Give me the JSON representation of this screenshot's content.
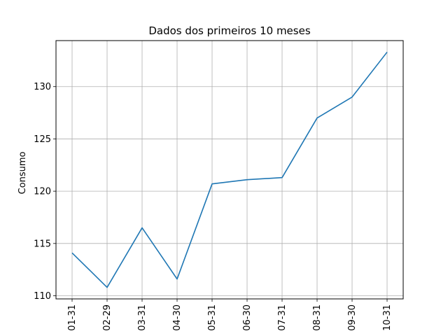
{
  "chart_data": {
    "type": "line",
    "title": "Dados dos primeiros 10 meses",
    "xlabel": "",
    "ylabel": "Consumo",
    "categories": [
      "01-31",
      "02-29",
      "03-31",
      "04-30",
      "05-31",
      "06-30",
      "07-31",
      "08-31",
      "09-30",
      "10-31"
    ],
    "series": [
      {
        "values": [
          114.1,
          110.8,
          116.5,
          111.6,
          120.7,
          121.1,
          121.3,
          127.0,
          129.0,
          133.3
        ]
      }
    ],
    "ylim": [
      109.7,
      134.4
    ],
    "yticks": [
      110,
      115,
      120,
      125,
      130
    ],
    "grid": true,
    "colors": {
      "line": "#1f77b4",
      "grid": "#b0b0b0"
    }
  }
}
